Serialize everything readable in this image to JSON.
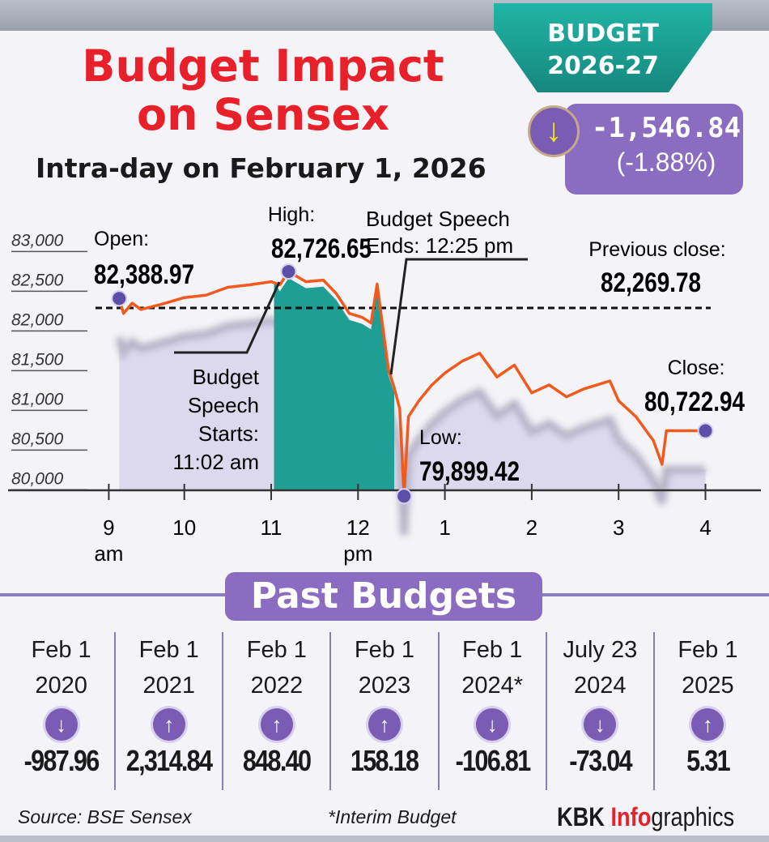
{
  "header": {
    "title_line1": "Budget Impact",
    "title_line2": "on Sensex",
    "subtitle": "Intra-day on February 1, 2026",
    "badge_line1": "BUDGET",
    "badge_line2": "2026-27",
    "change_value": "-1,546.84",
    "change_pct": "(-1.88%)",
    "change_icon": "arrow-down-icon"
  },
  "chart_data": {
    "type": "line",
    "title": "Budget Impact on Sensex",
    "ylim": [
      79970,
      83000
    ],
    "y_ticks": [
      {
        "v": 83000,
        "label": "83,000"
      },
      {
        "v": 82500,
        "label": "82,500"
      },
      {
        "v": 82000,
        "label": "82,000"
      },
      {
        "v": 81500,
        "label": "81,500"
      },
      {
        "v": 81000,
        "label": "81,000"
      },
      {
        "v": 80500,
        "label": "80,500"
      },
      {
        "v": 80000,
        "label": "80,000"
      }
    ],
    "x_ticks": [
      {
        "h": 9,
        "label": "9",
        "sub": "am"
      },
      {
        "h": 10,
        "label": "10"
      },
      {
        "h": 11,
        "label": "11"
      },
      {
        "h": 12,
        "label": "12",
        "sub": "pm"
      },
      {
        "h": 13,
        "label": "1"
      },
      {
        "h": 14,
        "label": "2"
      },
      {
        "h": 15,
        "label": "3"
      },
      {
        "h": 16,
        "label": "4"
      }
    ],
    "series": [
      {
        "name": "Sensex",
        "x": [
          9.25,
          9.3,
          9.4,
          9.5,
          9.75,
          10,
          10.25,
          10.5,
          10.75,
          11,
          11.1,
          11.2,
          11.4,
          11.6,
          11.75,
          11.9,
          12.05,
          12.15,
          12.22,
          12.3,
          12.35,
          12.42,
          12.48,
          12.53,
          12.58,
          12.7,
          12.85,
          13,
          13.2,
          13.4,
          13.6,
          13.8,
          14,
          14.2,
          14.4,
          14.6,
          14.9,
          15,
          15.2,
          15.4,
          15.5,
          15.55,
          15.6,
          16
        ],
        "y": [
          82389,
          82200,
          82330,
          82250,
          82320,
          82400,
          82430,
          82530,
          82560,
          82600,
          82560,
          82727,
          82600,
          82620,
          82450,
          82200,
          82150,
          82080,
          82570,
          81900,
          81500,
          81250,
          81000,
          79899,
          80900,
          81100,
          81300,
          81450,
          81600,
          81700,
          81400,
          81550,
          81200,
          81300,
          81150,
          81250,
          81350,
          81100,
          80900,
          80600,
          80300,
          80723,
          80723,
          80723
        ]
      }
    ],
    "previous_close": 82269.78,
    "speech_window": [
      11.033,
      12.417
    ],
    "annotations": {
      "open_label": "Open:",
      "open_value": "82,388.97",
      "high_label": "High:",
      "high_value": "82,726.65",
      "low_label": "Low:",
      "low_value": "79,899.42",
      "close_label": "Close:",
      "close_value": "80,722.94",
      "prev_label": "Previous close:",
      "prev_value": "82,269.78",
      "speech_start": [
        "Budget",
        "Speech",
        "Starts:",
        "11:02 am"
      ],
      "speech_end": [
        "Budget Speech",
        "Ends: 12:25 pm"
      ]
    }
  },
  "past": {
    "title": "Past Budgets",
    "items": [
      {
        "l1": "Feb 1",
        "l2": "2020",
        "dir": "down",
        "val": "-987.96"
      },
      {
        "l1": "Feb 1",
        "l2": "2021",
        "dir": "up",
        "val": "2,314.84"
      },
      {
        "l1": "Feb 1",
        "l2": "2022",
        "dir": "up",
        "val": "848.40"
      },
      {
        "l1": "Feb 1",
        "l2": "2023",
        "dir": "up",
        "val": "158.18"
      },
      {
        "l1": "Feb 1",
        "l2": "2024*",
        "dir": "down",
        "val": "-106.81"
      },
      {
        "l1": "July 23",
        "l2": "2024",
        "dir": "down",
        "val": "-73.04"
      },
      {
        "l1": "Feb 1",
        "l2": "2025",
        "dir": "up",
        "val": "5.31"
      }
    ]
  },
  "footer": {
    "source": "Source: BSE Sensex",
    "note": "*Interim Budget",
    "brand1": "KBK ",
    "brand2": "Info",
    "brand3": "graphics"
  },
  "colors": {
    "line": "#f05a1e",
    "teal": "#1f9e93",
    "lavender": "#dcd8ee",
    "purple": "#7b5cb4",
    "red": "#e8202a"
  }
}
